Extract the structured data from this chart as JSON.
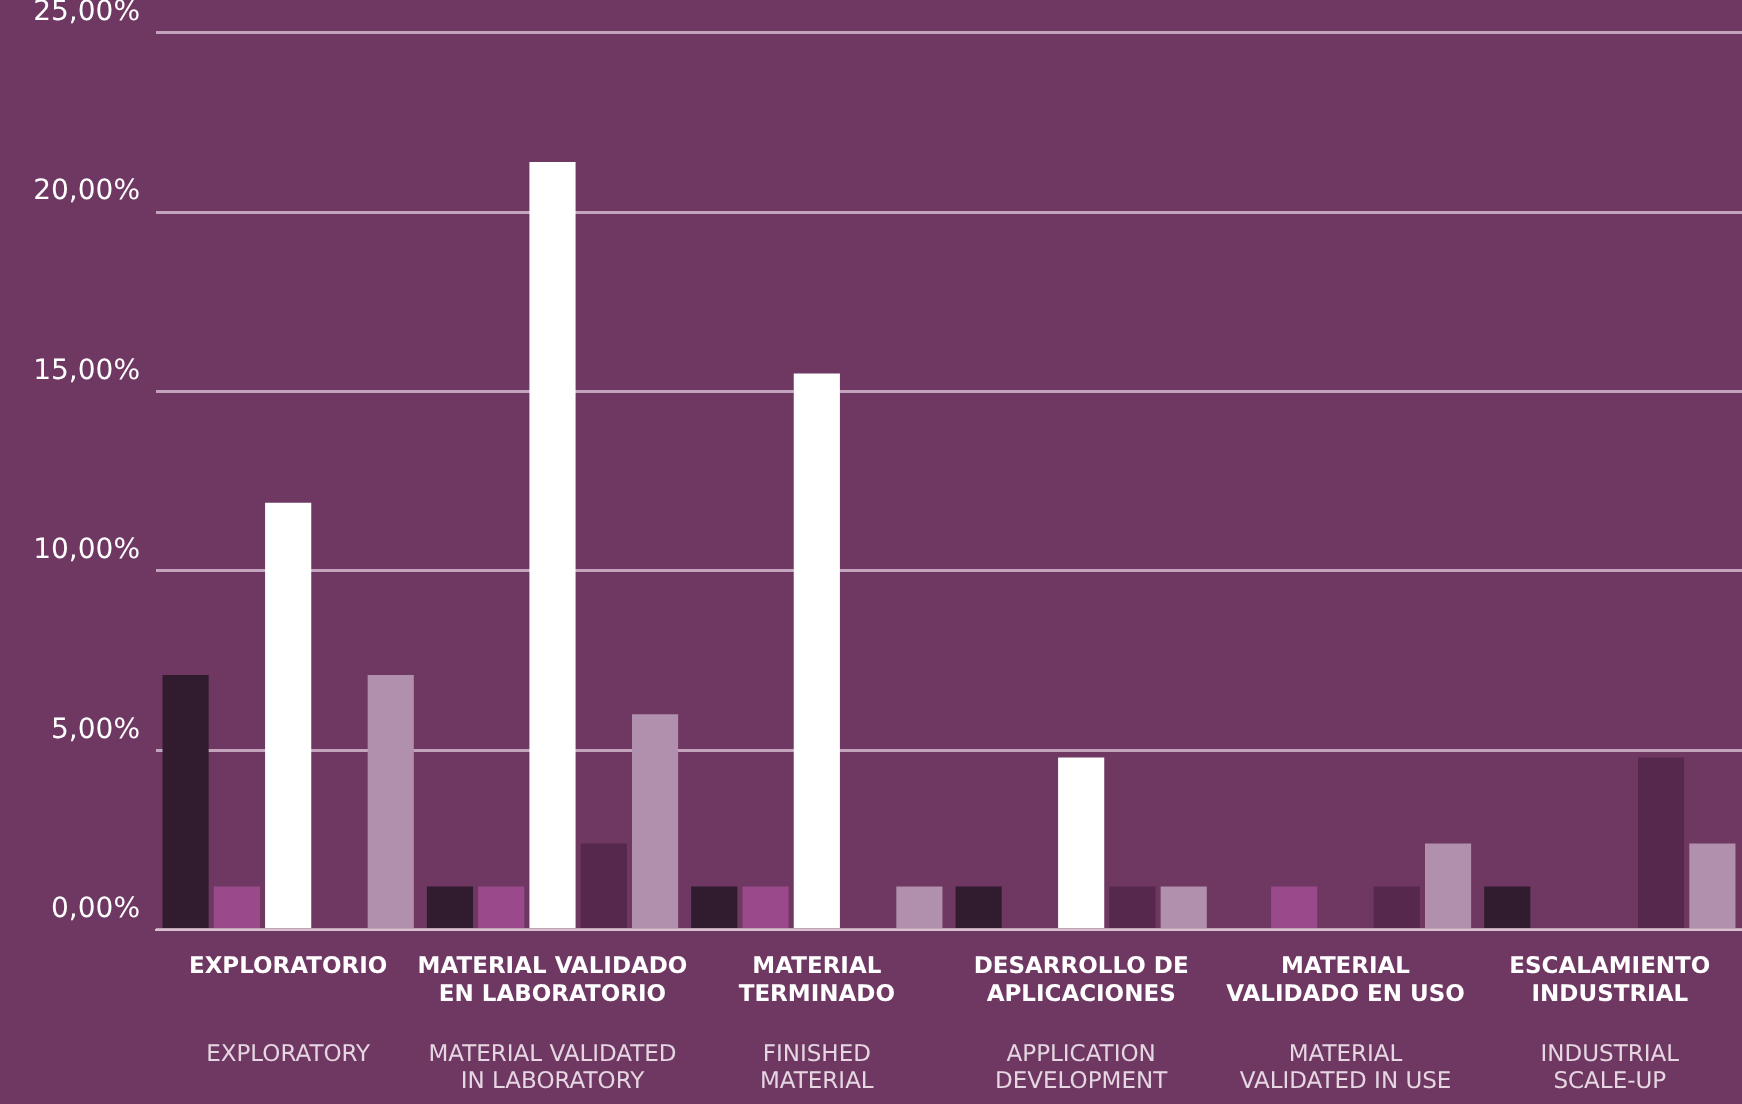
{
  "chart_data": {
    "type": "bar",
    "categories": [
      "EXPLORATORIO\n\nEXPLORATORY",
      "MATERIAL VALIDADO\nEN LABORATORIO\n\nMATERIAL VALIDATED\nIN LABORATORY",
      "MATERIAL\nTERMINADO\n\nFINISHED\nMATERIAL",
      "DESARROLLO DE\nAPLICACIONES\n\nAPPLICATION\nDEVELOPMENT",
      "MATERIAL\nVALIDADO EN USO\n\nMATERIAL\nVALIDATED IN USE",
      "ESCALAMIENTO\nINDUSTRIAL\n\nINDUSTRIAL\nSCALE-UP"
    ],
    "series": [
      {
        "color": "#301c2e",
        "values": [
          7.1,
          1.2,
          1.2,
          1.2,
          null,
          1.2
        ]
      },
      {
        "color": "#9a4a8a",
        "values": [
          1.2,
          1.2,
          1.2,
          null,
          1.2,
          null
        ]
      },
      {
        "color": "#ffffff",
        "values": [
          11.9,
          21.4,
          15.5,
          4.8,
          null,
          null
        ]
      },
      {
        "color": "#56284e",
        "values": [
          null,
          2.4,
          null,
          1.2,
          1.2,
          4.8
        ]
      },
      {
        "color": "#b090ac",
        "values": [
          7.1,
          6.0,
          1.2,
          1.2,
          2.4,
          2.4
        ]
      }
    ],
    "ylim": [
      0,
      25
    ],
    "yticks": [
      {
        "value": 0,
        "label": "0,00%"
      },
      {
        "value": 5,
        "label": "5,00%"
      },
      {
        "value": 10,
        "label": "10,00%"
      },
      {
        "value": 15,
        "label": "15,00%"
      },
      {
        "value": 20,
        "label": "20,00%"
      },
      {
        "value": 25,
        "label": "25,00%"
      }
    ],
    "grid": "y",
    "legend": false
  }
}
